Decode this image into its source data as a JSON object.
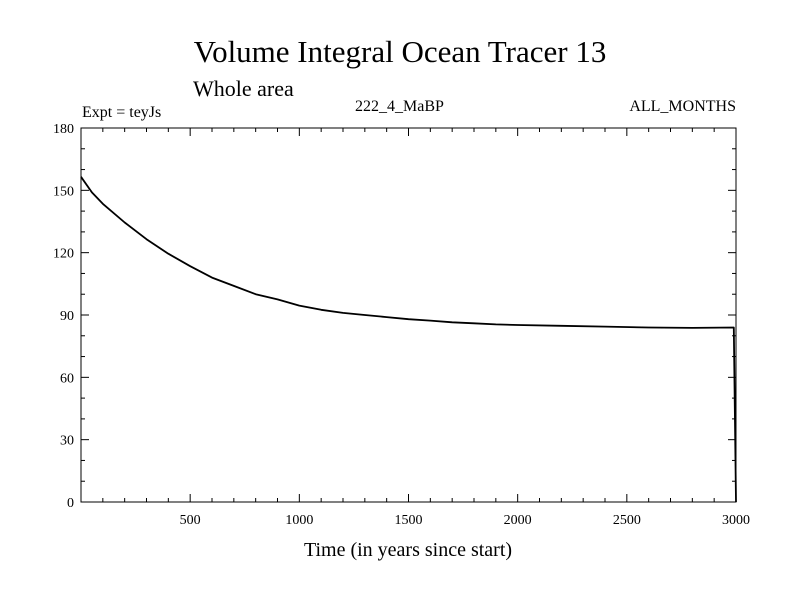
{
  "chart_data": {
    "type": "line",
    "title": "Volume Integral Ocean Tracer 13",
    "subtitle": "Whole area",
    "annotations": {
      "experiment": "Expt = teyJs",
      "run": "222_4_MaBP",
      "months": "ALL_MONTHS"
    },
    "xlabel": "Time (in years since start)",
    "ylabel": "",
    "xlim": [
      0,
      3000
    ],
    "ylim": [
      0,
      180
    ],
    "xticks": [
      500,
      1000,
      1500,
      2000,
      2500,
      3000
    ],
    "yticks": [
      0,
      30,
      60,
      90,
      120,
      150,
      180
    ],
    "grid": false,
    "series": [
      {
        "name": "Tracer 13",
        "color": "#000000",
        "x": [
          0,
          50,
          100,
          200,
          300,
          400,
          500,
          600,
          700,
          800,
          900,
          1000,
          1100,
          1200,
          1300,
          1400,
          1500,
          1600,
          1700,
          1800,
          1900,
          2000,
          2200,
          2400,
          2600,
          2800,
          2990,
          3000
        ],
        "y": [
          156.5,
          149,
          143.5,
          134.5,
          126.5,
          119.5,
          113.5,
          108,
          104,
          100,
          97.5,
          94.5,
          92.5,
          91,
          90,
          89,
          88,
          87.3,
          86.5,
          86,
          85.5,
          85.2,
          84.8,
          84.4,
          84.0,
          83.8,
          84.0,
          0
        ]
      }
    ]
  }
}
